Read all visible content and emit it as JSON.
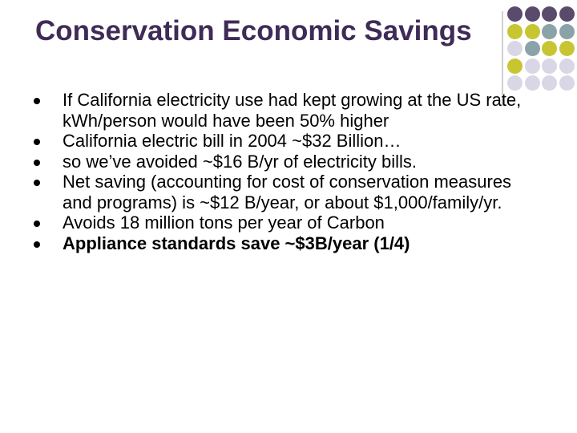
{
  "slide": {
    "title": "Conservation Economic Savings",
    "bullets": [
      {
        "text": "If California electricity use had kept growing at the US rate, kWh/person would have been 50% higher",
        "bold": false
      },
      {
        "text": "California electric bill in 2004 ~$32 Billion…",
        "bold": false
      },
      {
        "text": "so we’ve avoided ~$16 B/yr of electricity bills.",
        "bold": false
      },
      {
        "text": "Net saving (accounting for cost of conservation measures and programs) is ~$12 B/year, or about $1,000/family/yr.",
        "bold": false
      },
      {
        "text": "Avoids 18 million tons per year of Carbon",
        "bold": false
      },
      {
        "text": "Appliance standards save ~$3B/year (1/4)",
        "bold": true
      }
    ]
  },
  "decoration": {
    "colors": {
      "purple": "#5a4a6b",
      "gray_blue": "#8aa3a8",
      "olive": "#c7c632",
      "lavender": "#d9d6e6",
      "title": "#3f2b57"
    },
    "dot_grid": [
      [
        "purple",
        "purple",
        "purple",
        "purple"
      ],
      [
        "olive",
        "olive",
        "gray_blue",
        "gray_blue"
      ],
      [
        "lavender",
        "gray_blue",
        "olive",
        "olive"
      ],
      [
        "olive",
        "lavender",
        "lavender",
        "lavender"
      ],
      [
        "lavender",
        "lavender",
        "lavender",
        "lavender"
      ]
    ]
  }
}
